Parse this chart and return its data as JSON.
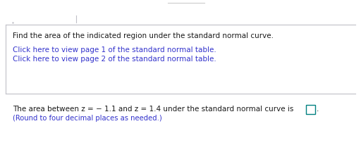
{
  "line1": "Find the area of the indicated region under the standard normal curve.",
  "link1": "Click here to view page 1 of the standard normal table.",
  "link2": "Click here to view page 2 of the standard normal table.",
  "bottom_text": "The area between z = − 1.1 and z = 1.4 under the standard normal curve is",
  "bottom_sub": "(Round to four decimal places as needed.)",
  "bg_color": "#ffffff",
  "text_color": "#1a1a1a",
  "link_color": "#3333cc",
  "sub_color": "#3333cc",
  "line_color": "#c0c0c8",
  "font_size_main": 7.5,
  "font_size_link": 7.5,
  "font_size_bottom": 7.5,
  "font_size_sub": 7.2,
  "box_color": "#008080",
  "tab_line_color": "#aaaaaa",
  "top_small_line_color": "#cccccc"
}
